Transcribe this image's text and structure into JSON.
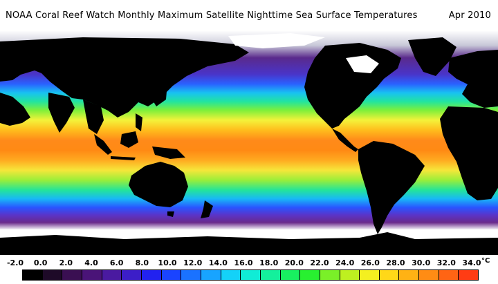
{
  "title": {
    "main": "NOAA Coral Reef Watch Monthly Maximum Satellite Nighttime Sea Surface Temperatures",
    "date": "Apr 2010"
  },
  "map": {
    "ocean_gradient": [
      {
        "lat": 90,
        "color": "#ffffff"
      },
      {
        "lat": 78,
        "color": "#c8c8d8"
      },
      {
        "lat": 68,
        "color": "#5a2a8c"
      },
      {
        "lat": 55,
        "color": "#4a34c8"
      },
      {
        "lat": 47,
        "color": "#2a62ff"
      },
      {
        "lat": 40,
        "color": "#18c2f2"
      },
      {
        "lat": 33,
        "color": "#22e4a0"
      },
      {
        "lat": 26,
        "color": "#7ef03a"
      },
      {
        "lat": 18,
        "color": "#f4f23a"
      },
      {
        "lat": 10,
        "color": "#ffbc1c"
      },
      {
        "lat": 2,
        "color": "#ff8a1a"
      },
      {
        "lat": -6,
        "color": "#ff8a14"
      },
      {
        "lat": -14,
        "color": "#ffaa20"
      },
      {
        "lat": -22,
        "color": "#f6e63a"
      },
      {
        "lat": -30,
        "color": "#9aee3a"
      },
      {
        "lat": -38,
        "color": "#24e49a"
      },
      {
        "lat": -45,
        "color": "#18b8f6"
      },
      {
        "lat": -52,
        "color": "#2a54ff"
      },
      {
        "lat": -58,
        "color": "#5a34c8"
      },
      {
        "lat": -64,
        "color": "#6a2a8c"
      },
      {
        "lat": -70,
        "color": "#ffffff"
      },
      {
        "lat": -90,
        "color": "#ffffff"
      }
    ],
    "land_color": "#000000",
    "ice_color": "#ffffff"
  },
  "colorbar": {
    "unit": "°C",
    "ticks": [
      "-2.0",
      "0.0",
      "2.0",
      "4.0",
      "6.0",
      "8.0",
      "10.0",
      "12.0",
      "14.0",
      "16.0",
      "18.0",
      "20.0",
      "22.0",
      "24.0",
      "26.0",
      "28.0",
      "30.0",
      "32.0",
      "34.0"
    ],
    "colors": [
      "#000000",
      "#1e0a28",
      "#3a0f52",
      "#4a1478",
      "#4a1aa0",
      "#3c1ec8",
      "#2222f0",
      "#1a44ff",
      "#1a72ff",
      "#18a4ff",
      "#14d2f8",
      "#10ecd6",
      "#14f09c",
      "#18f060",
      "#28f030",
      "#7af028",
      "#bef020",
      "#f4f020",
      "#ffd818",
      "#ffb214",
      "#ff8c14",
      "#ff6414",
      "#ff3c14"
    ]
  }
}
